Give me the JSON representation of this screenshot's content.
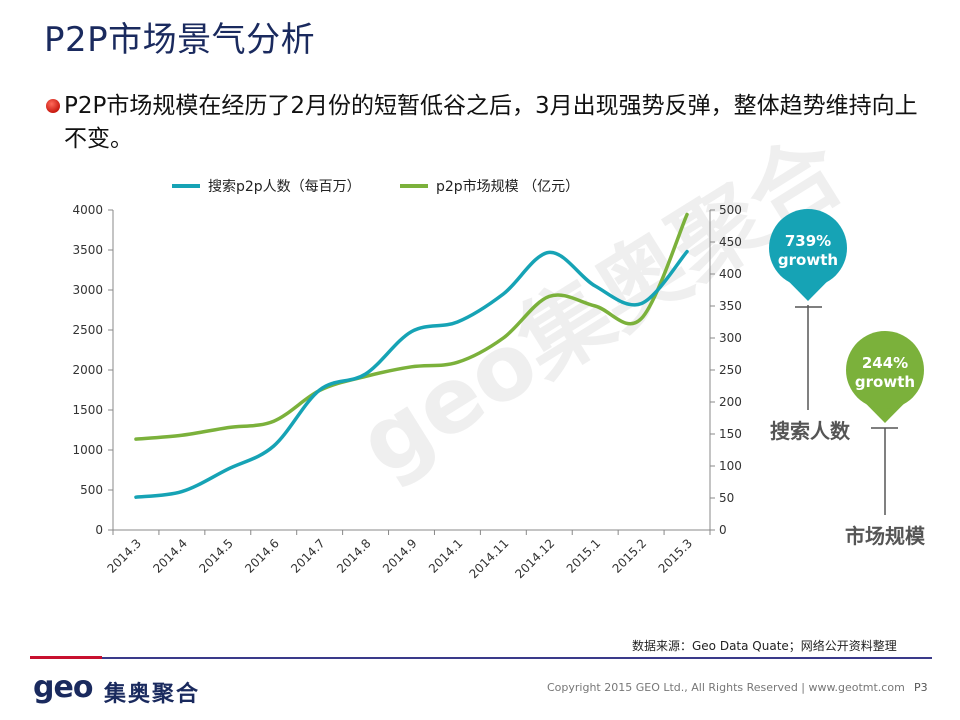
{
  "slide": {
    "title": "P2P市场景气分析",
    "bullet": "P2P市场规模在经历了2月份的短暂低谷之后，3月出现强势反弹，整体趋势维持向上不变。",
    "source": "数据来源：Geo Data Quate；网络公开资料整理",
    "logo_latin": "geo",
    "logo_cn": "集奥聚合",
    "watermark": "geo集奥聚合",
    "copyright": "Copyright 2015 GEO Ltd., All Rights Reserved  |  www.geotmt.com",
    "page": "P3"
  },
  "callouts": {
    "search": {
      "bubble_line1": "739%",
      "bubble_line2": "growth",
      "label": "搜索人数",
      "color": "#16a3b5"
    },
    "market": {
      "bubble_line1": "244%",
      "bubble_line2": "growth",
      "label": "市场规模",
      "color": "#7bb13b"
    }
  },
  "chart_data": {
    "type": "line",
    "categories": [
      "2014.3",
      "2014.4",
      "2014.5",
      "2014.6",
      "2014.7",
      "2014.8",
      "2014.9",
      "2014.1",
      "2014.11",
      "2014.12",
      "2015.1",
      "2015.2",
      "2015.3"
    ],
    "series": [
      {
        "name": "搜索p2p人数（每百万）",
        "axis": "left",
        "color": "#16a3b5",
        "values": [
          410,
          480,
          760,
          1050,
          1750,
          1950,
          2480,
          2600,
          2950,
          3470,
          3050,
          2830,
          3480
        ]
      },
      {
        "name": "p2p市场规模  （亿元）",
        "axis": "right",
        "color": "#7bb13b",
        "values": [
          142,
          148,
          160,
          170,
          218,
          240,
          255,
          262,
          300,
          365,
          350,
          330,
          493
        ]
      }
    ],
    "y_left": {
      "min": 0,
      "max": 4000,
      "ticks": [
        0,
        500,
        1000,
        1500,
        2000,
        2500,
        3000,
        3500,
        4000
      ]
    },
    "y_right": {
      "min": 0,
      "max": 500,
      "ticks": [
        0,
        50,
        100,
        150,
        200,
        250,
        300,
        350,
        400,
        450,
        500
      ]
    },
    "legend_position": "top",
    "grid": false
  }
}
